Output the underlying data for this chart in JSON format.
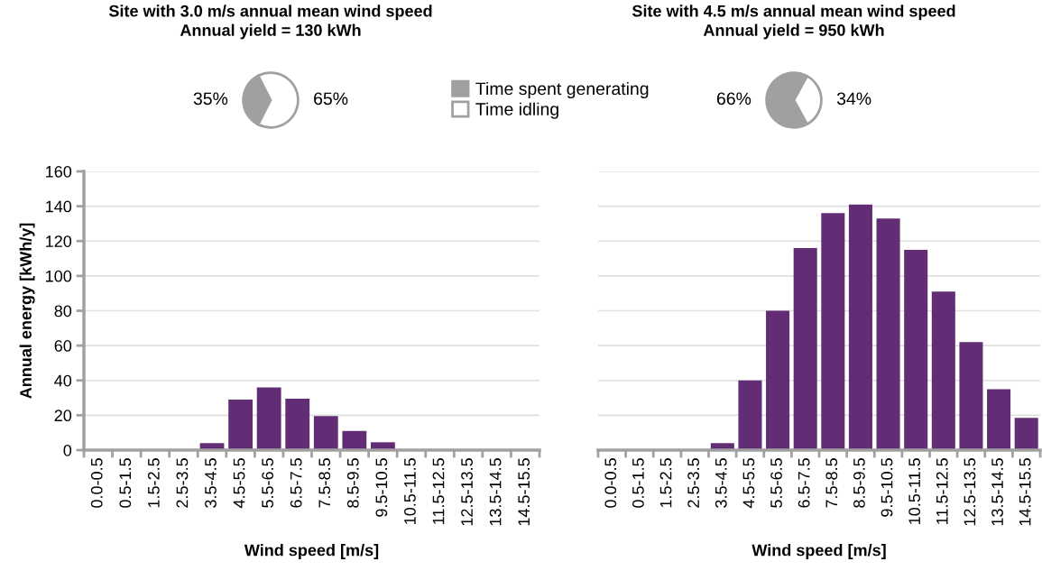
{
  "chart_data": [
    {
      "type": "pie",
      "title": "Site with 3.0 m/s annual mean wind speed",
      "subtitle": "Annual yield = 130 kWh",
      "categories": [
        "Time spent generating",
        "Time idling"
      ],
      "values": [
        35,
        65
      ],
      "colors": [
        "#a0a0a0",
        "#ffffff"
      ],
      "value_labels": [
        "35%",
        "65%"
      ],
      "legend": "right"
    },
    {
      "type": "pie",
      "title": "Site with 4.5 m/s annual mean wind speed",
      "subtitle": "Annual yield = 950 kWh",
      "values": [
        66,
        34
      ],
      "colors": [
        "#a0a0a0",
        "#ffffff"
      ],
      "value_labels": [
        "66%",
        "34%"
      ]
    },
    {
      "type": "bar",
      "xlabel": "Wind speed [m/s]",
      "ylabel": "Annual energy [kWh/y]",
      "categories": [
        "0.0-0.5",
        "0.5-1.5",
        "1.5-2.5",
        "2.5-3.5",
        "3.5-4.5",
        "4.5-5.5",
        "5.5-6.5",
        "6.5-7.5",
        "7.5-8.5",
        "8.5-9.5",
        "9.5-10.5",
        "10.5-11.5",
        "11.5-12.5",
        "12.5-13.5",
        "13.5-14.5",
        "14.5-15.5"
      ],
      "values": [
        0,
        0,
        0,
        0,
        4,
        29,
        36,
        29.5,
        19.5,
        11,
        4.5,
        0,
        0,
        0,
        0,
        0
      ],
      "color": "#622d75",
      "ylim": [
        0,
        160
      ],
      "yticks": [
        0,
        20,
        40,
        60,
        80,
        100,
        120,
        140,
        160
      ],
      "grid": "y"
    },
    {
      "type": "bar",
      "xlabel": "Wind speed [m/s]",
      "categories": [
        "0.0-0.5",
        "0.5-1.5",
        "1.5-2.5",
        "2.5-3.5",
        "3.5-4.5",
        "4.5-5.5",
        "5.5-6.5",
        "6.5-7.5",
        "7.5-8.5",
        "8.5-9.5",
        "9.5-10.5",
        "10.5-11.5",
        "11.5-12.5",
        "12.5-13.5",
        "13.5-14.5",
        "14.5-15.5"
      ],
      "values": [
        0,
        0,
        0,
        0,
        4,
        40,
        80,
        116,
        136,
        141,
        133,
        115,
        91,
        62,
        35,
        18.5
      ],
      "color": "#622d75",
      "ylim": [
        0,
        160
      ],
      "yticks": [
        0,
        20,
        40,
        60,
        80,
        100,
        120,
        140,
        160
      ],
      "grid": "y",
      "tick_labels": "x"
    }
  ]
}
